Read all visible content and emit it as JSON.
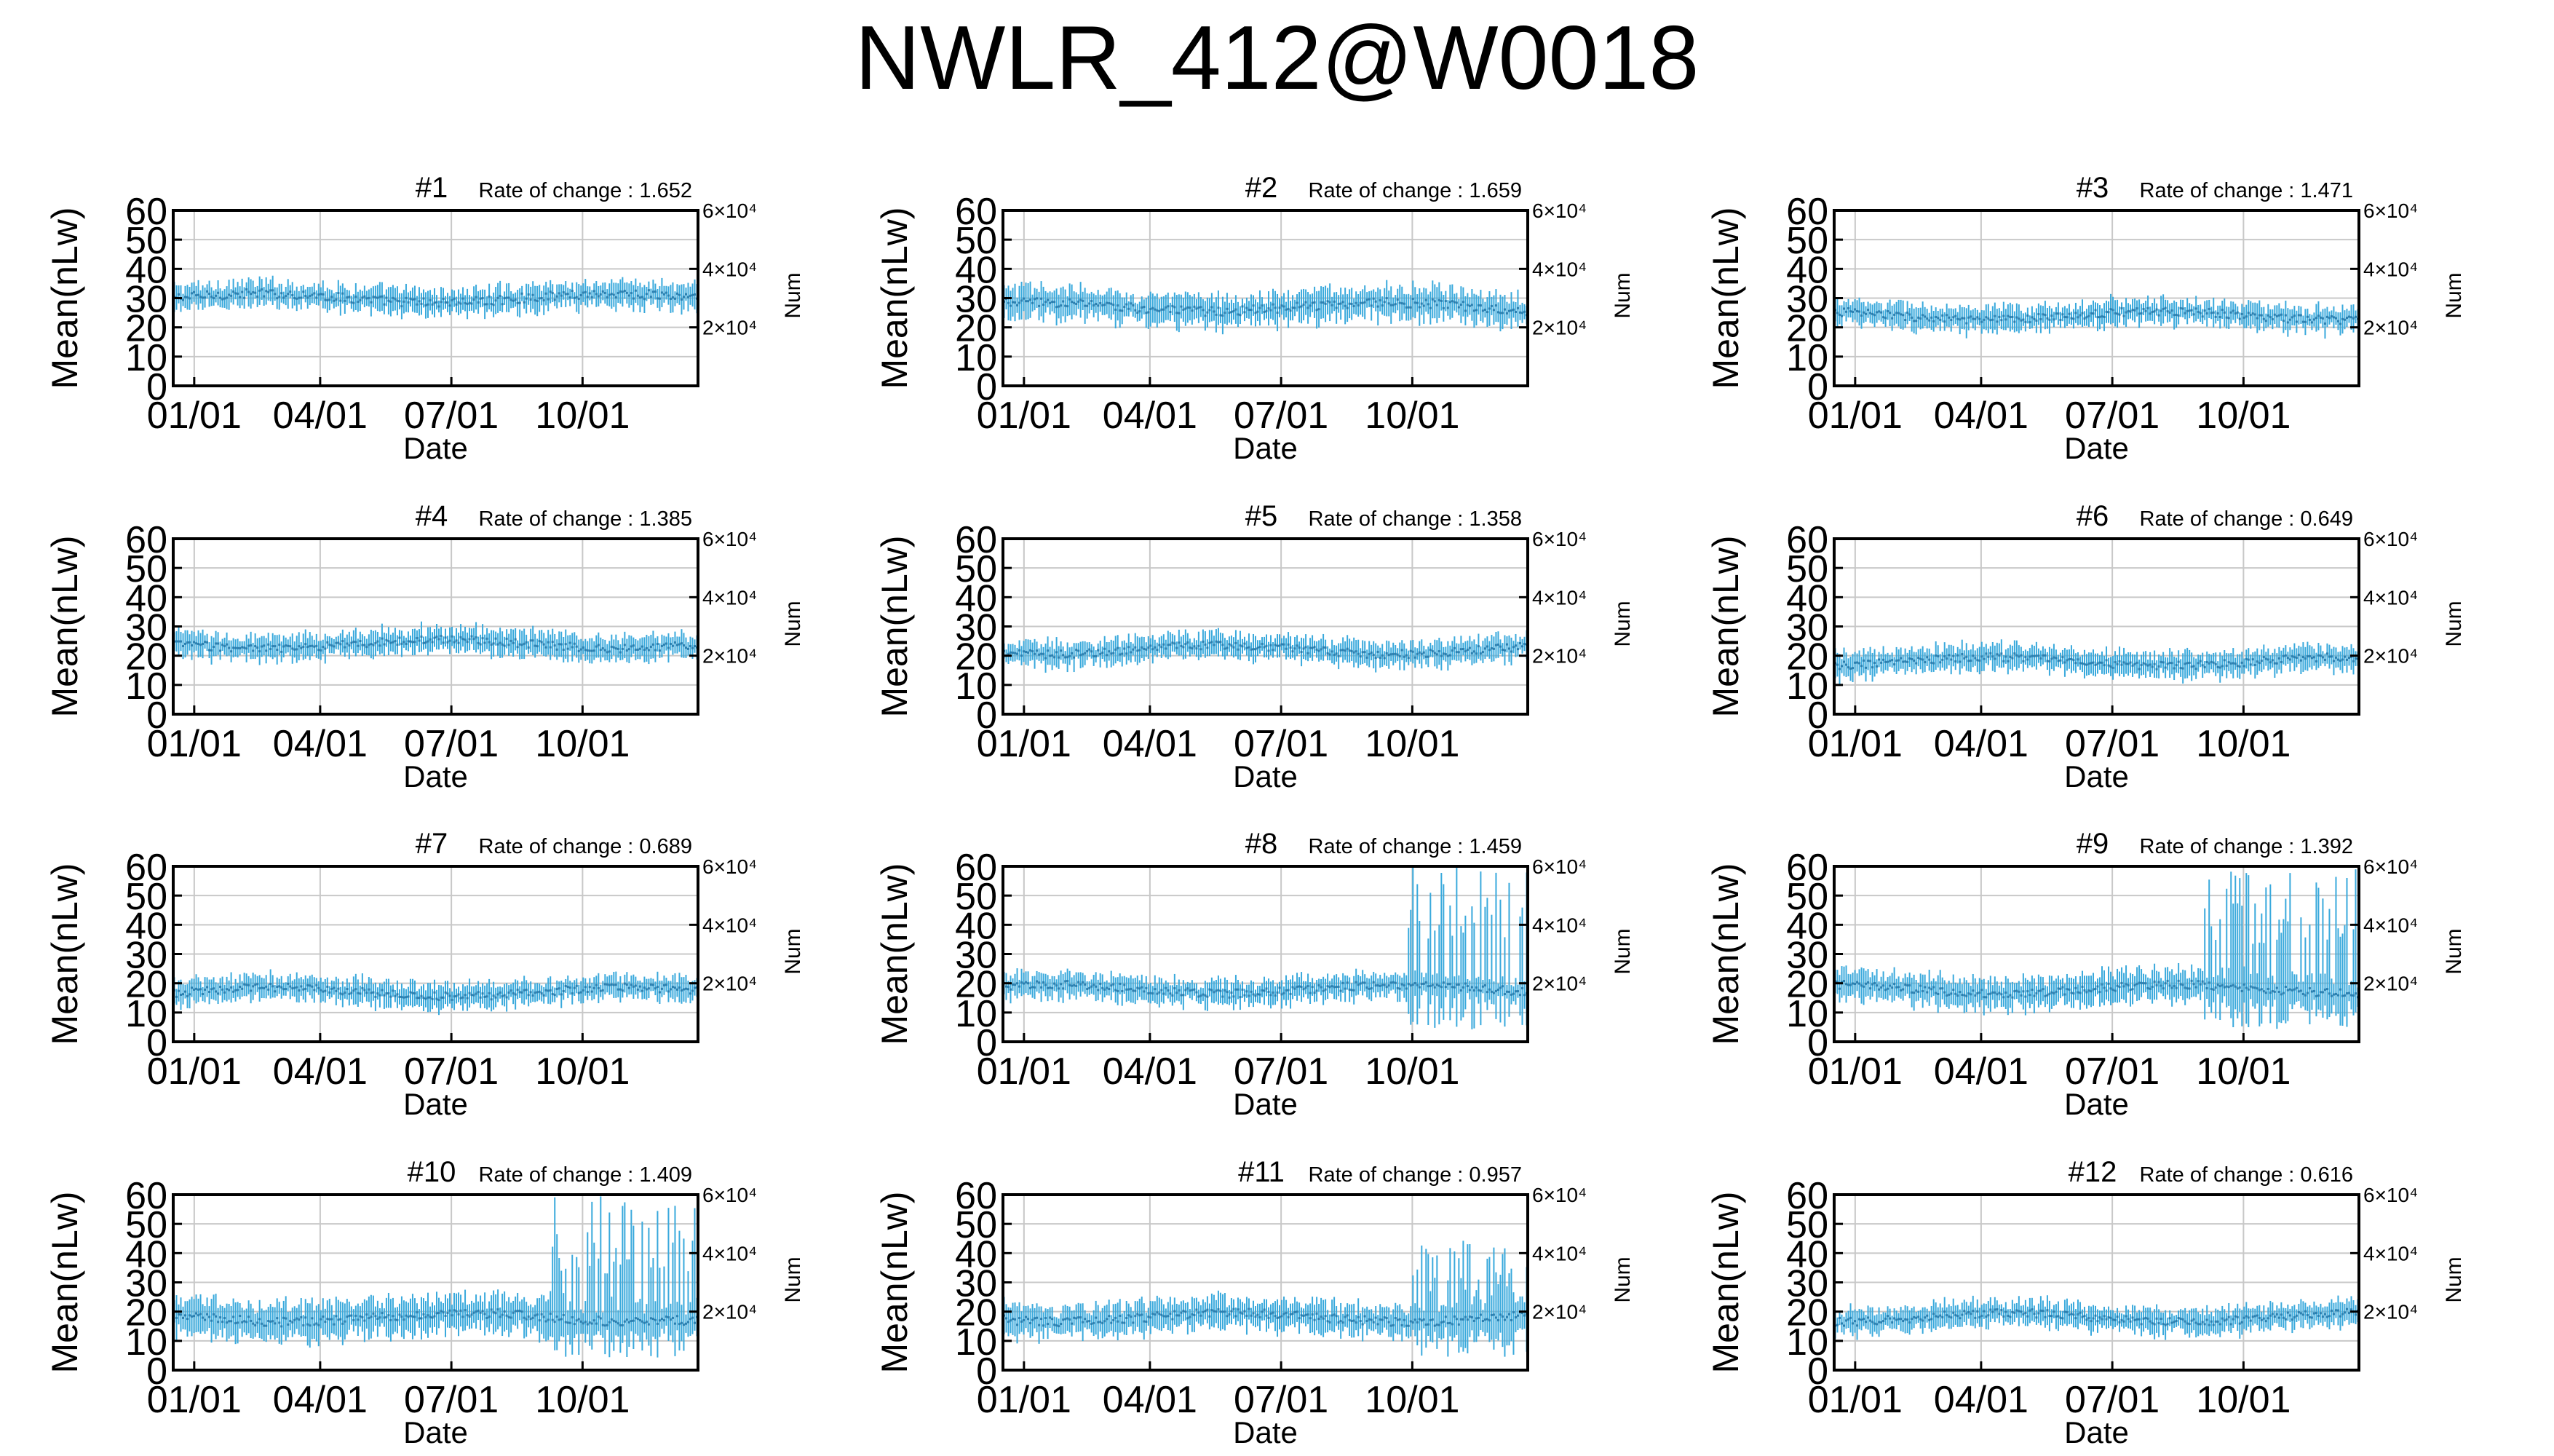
{
  "title": "NWLR_412@W0018",
  "chart_data": [
    {
      "panel": "#1",
      "type": "line",
      "rate_label": "Rate of change : 1.652",
      "base": 30,
      "spread": 4,
      "noise": 1.6,
      "spike_start": 0.97,
      "spike_level": 0
    },
    {
      "panel": "#2",
      "type": "line",
      "rate_label": "Rate of change : 1.659",
      "base": 27,
      "spread": 5,
      "noise": 1.6,
      "spike_start": 1.0,
      "spike_level": 0
    },
    {
      "panel": "#3",
      "type": "line",
      "rate_label": "Rate of change : 1.471",
      "base": 24,
      "spread": 4,
      "noise": 1.4,
      "spike_start": 1.0,
      "spike_level": 0
    },
    {
      "panel": "#4",
      "type": "line",
      "rate_label": "Rate of change : 1.385",
      "base": 24,
      "spread": 4,
      "noise": 1.4,
      "spike_start": 1.0,
      "spike_level": 0
    },
    {
      "panel": "#5",
      "type": "line",
      "rate_label": "Rate of change : 1.358",
      "base": 22,
      "spread": 4,
      "noise": 1.4,
      "spike_start": 1.0,
      "spike_level": 0
    },
    {
      "panel": "#6",
      "type": "line",
      "rate_label": "Rate of change : 0.649",
      "base": 18,
      "spread": 4,
      "noise": 1.4,
      "spike_start": 1.0,
      "spike_level": 0
    },
    {
      "panel": "#7",
      "type": "line",
      "rate_label": "Rate of change : 0.689",
      "base": 17,
      "spread": 4,
      "noise": 1.4,
      "spike_start": 1.0,
      "spike_level": 0
    },
    {
      "panel": "#8",
      "type": "line",
      "rate_label": "Rate of change : 1.459",
      "base": 18,
      "spread": 4,
      "noise": 1.4,
      "spike_start": 0.76,
      "spike_level": 60
    },
    {
      "panel": "#9",
      "type": "line",
      "rate_label": "Rate of change : 1.392",
      "base": 18,
      "spread": 5,
      "noise": 1.4,
      "spike_start": 0.7,
      "spike_level": 60
    },
    {
      "panel": "#10",
      "type": "line",
      "rate_label": "Rate of change : 1.409",
      "base": 18,
      "spread": 6,
      "noise": 1.6,
      "spike_start": 0.72,
      "spike_level": 60
    },
    {
      "panel": "#11",
      "type": "line",
      "rate_label": "Rate of change : 0.957",
      "base": 18,
      "spread": 5,
      "noise": 1.5,
      "spike_start": 0.78,
      "spike_level": 45
    },
    {
      "panel": "#12",
      "type": "line",
      "rate_label": "Rate of change : 0.616",
      "base": 18,
      "spread": 4,
      "noise": 1.4,
      "spike_start": 1.0,
      "spike_level": 0
    }
  ],
  "shared_axes": {
    "ylabel": "Mean(nLw)",
    "xlabel": "Date",
    "y2label": "Num",
    "ylim": [
      0,
      60
    ],
    "y_ticks": [
      "0",
      "10",
      "20",
      "30",
      "40",
      "50",
      "60"
    ],
    "x_ticks": [
      "01/01",
      "04/01",
      "07/01",
      "10/01"
    ],
    "x_tick_fractions": [
      0.04,
      0.28,
      0.53,
      0.78
    ],
    "y2_ticks": [
      "2×10⁴",
      "4×10⁴",
      "6×10⁴"
    ],
    "y2_tick_values": [
      20000,
      40000,
      60000
    ],
    "y2lim": [
      0,
      60000
    ],
    "grid": true,
    "series_color": "#39a9dc"
  }
}
